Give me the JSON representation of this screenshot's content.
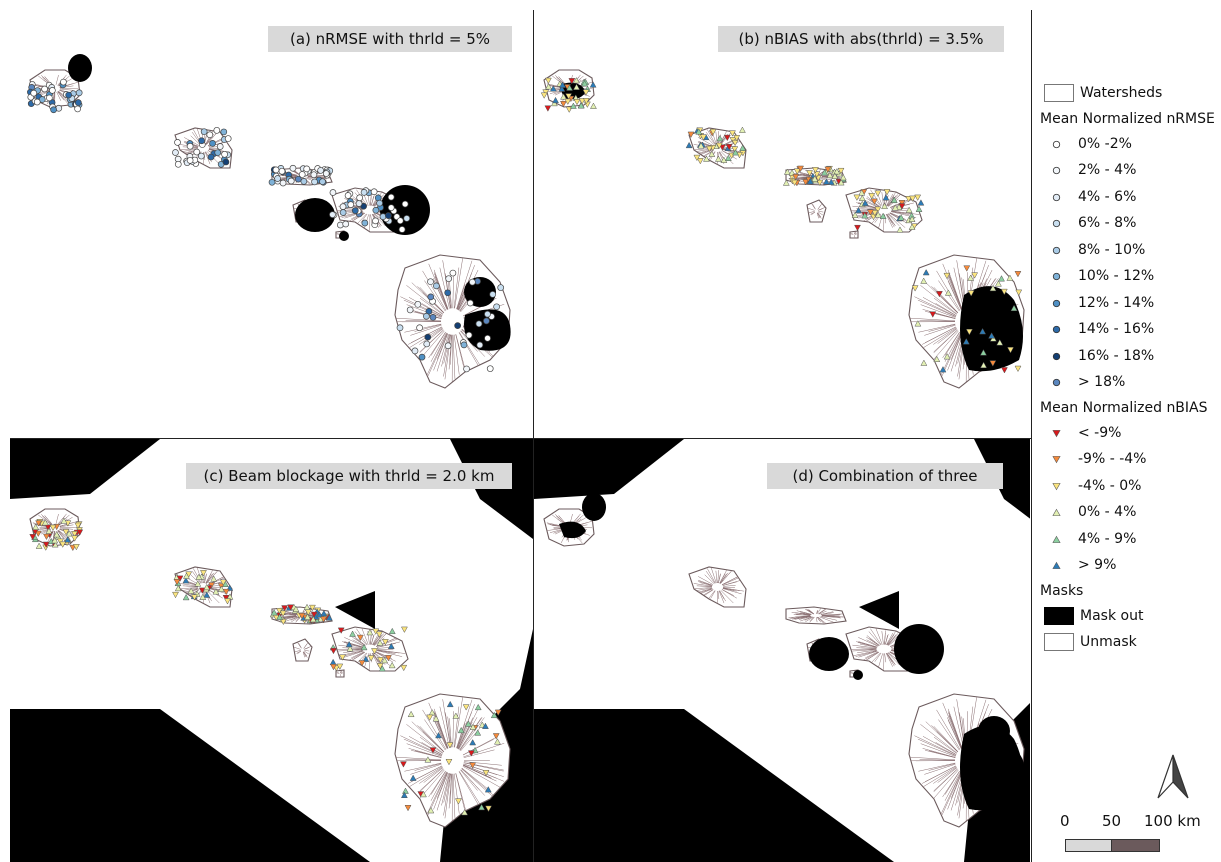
{
  "panels": [
    {
      "id": "a",
      "title": "(a) nRMSE with thrld = 5%"
    },
    {
      "id": "b",
      "title": "(b) nBIAS with abs(thrld) = 3.5%"
    },
    {
      "id": "c",
      "title": "(c) Beam blockage with thrld = 2.0 km"
    },
    {
      "id": "d",
      "title": "(d) Combination of three"
    }
  ],
  "legend": {
    "watersheds_label": "Watersheds",
    "nrmse_title": "Mean Normalized nRMSE",
    "nrmse_classes": [
      {
        "label": "0% -2%",
        "color": "#ffffff"
      },
      {
        "label": "2% - 4%",
        "color": "#f2f6fa"
      },
      {
        "label": "4% - 6%",
        "color": "#e2ecf6"
      },
      {
        "label": "6% - 8%",
        "color": "#c9dff0"
      },
      {
        "label": "8% - 10%",
        "color": "#a9cbe6"
      },
      {
        "label": "10% - 12%",
        "color": "#7fb2d8"
      },
      {
        "label": "12% - 14%",
        "color": "#4f90c4"
      },
      {
        "label": "14% - 16%",
        "color": "#2d6aa8"
      },
      {
        "label": "16% - 18%",
        "color": "#143f73"
      },
      {
        "label": "> 18%",
        "color": "#5a86be"
      }
    ],
    "nbias_title": "Mean Normalized nBIAS",
    "nbias_classes": [
      {
        "label": "< -9%",
        "color": "#d7191c"
      },
      {
        "label": "-9% - -4%",
        "color": "#f48a3c"
      },
      {
        "label": "-4% - 0%",
        "color": "#fbe57f"
      },
      {
        "label": "0% - 4%",
        "color": "#e2f0b3"
      },
      {
        "label": "4% - 9%",
        "color": "#8ccfa0"
      },
      {
        "label": "> 9%",
        "color": "#2c7bb6"
      }
    ],
    "masks_title": "Masks",
    "mask_out_label": "Mask out",
    "unmask_label": "Unmask"
  },
  "scalebar": {
    "labels": [
      "0",
      "50",
      "100 km"
    ]
  },
  "colors": {
    "mask": "#000000",
    "watershed_line": "#8a6f72",
    "frame": "#222222"
  }
}
